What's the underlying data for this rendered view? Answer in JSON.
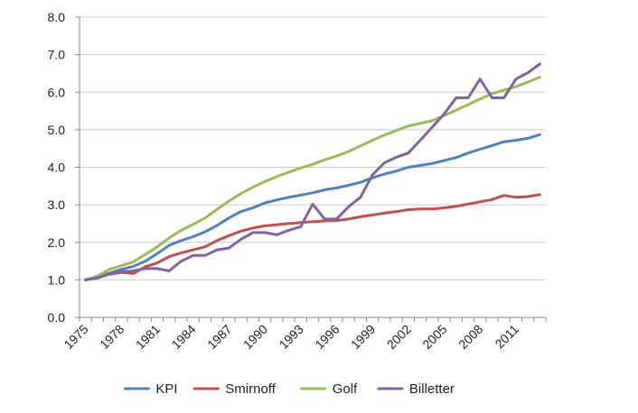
{
  "chart_data": {
    "type": "line",
    "title": "",
    "xlabel": "",
    "ylabel": "",
    "ylim": [
      0,
      8
    ],
    "y_ticks": [
      "0.0",
      "1.0",
      "2.0",
      "3.0",
      "4.0",
      "5.0",
      "6.0",
      "7.0",
      "8.0"
    ],
    "x_tick_labels": [
      "1975",
      "1978",
      "1981",
      "1984",
      "1987",
      "1990",
      "1993",
      "1996",
      "1999",
      "2002",
      "2005",
      "2008",
      "2011"
    ],
    "grid": "horizontal",
    "legend_position": "bottom",
    "x": [
      1975,
      1976,
      1977,
      1978,
      1979,
      1980,
      1981,
      1982,
      1983,
      1984,
      1985,
      1986,
      1987,
      1988,
      1989,
      1990,
      1991,
      1992,
      1993,
      1994,
      1995,
      1996,
      1997,
      1998,
      1999,
      2000,
      2001,
      2002,
      2003,
      2004,
      2005,
      2006,
      2007,
      2008,
      2009,
      2010,
      2011,
      2012,
      2013
    ],
    "series": [
      {
        "name": "KPI",
        "color": "#4F81BD",
        "values": [
          1.0,
          1.08,
          1.18,
          1.28,
          1.36,
          1.5,
          1.7,
          1.92,
          2.05,
          2.15,
          2.28,
          2.45,
          2.65,
          2.82,
          2.92,
          3.05,
          3.13,
          3.2,
          3.26,
          3.32,
          3.4,
          3.45,
          3.52,
          3.6,
          3.72,
          3.82,
          3.9,
          4.0,
          4.05,
          4.1,
          4.18,
          4.26,
          4.38,
          4.48,
          4.58,
          4.68,
          4.72,
          4.77,
          4.87
        ]
      },
      {
        "name": "Smirnoff",
        "color": "#C0504D",
        "values": [
          1.0,
          1.05,
          1.15,
          1.2,
          1.17,
          1.35,
          1.45,
          1.62,
          1.72,
          1.8,
          1.88,
          2.05,
          2.18,
          2.3,
          2.38,
          2.44,
          2.47,
          2.5,
          2.53,
          2.55,
          2.57,
          2.58,
          2.62,
          2.68,
          2.73,
          2.78,
          2.82,
          2.87,
          2.89,
          2.89,
          2.92,
          2.96,
          3.02,
          3.08,
          3.14,
          3.25,
          3.2,
          3.22,
          3.27
        ]
      },
      {
        "name": "Golf",
        "color": "#9BBB59",
        "values": [
          1.0,
          1.1,
          1.28,
          1.38,
          1.48,
          1.68,
          1.88,
          2.12,
          2.32,
          2.48,
          2.65,
          2.88,
          3.1,
          3.3,
          3.47,
          3.62,
          3.75,
          3.87,
          3.98,
          4.08,
          4.2,
          4.3,
          4.42,
          4.57,
          4.72,
          4.86,
          4.98,
          5.1,
          5.17,
          5.24,
          5.38,
          5.52,
          5.67,
          5.82,
          5.96,
          6.06,
          6.15,
          6.27,
          6.4
        ]
      },
      {
        "name": "Billetter",
        "color": "#8064A2",
        "values": [
          1.0,
          1.06,
          1.16,
          1.22,
          1.24,
          1.3,
          1.3,
          1.24,
          1.5,
          1.65,
          1.65,
          1.8,
          1.85,
          2.08,
          2.26,
          2.26,
          2.2,
          2.32,
          2.42,
          3.02,
          2.62,
          2.62,
          2.95,
          3.2,
          3.8,
          4.12,
          4.27,
          4.38,
          4.72,
          5.07,
          5.42,
          5.85,
          5.85,
          6.35,
          5.85,
          5.85,
          6.35,
          6.52,
          6.75
        ]
      }
    ]
  }
}
